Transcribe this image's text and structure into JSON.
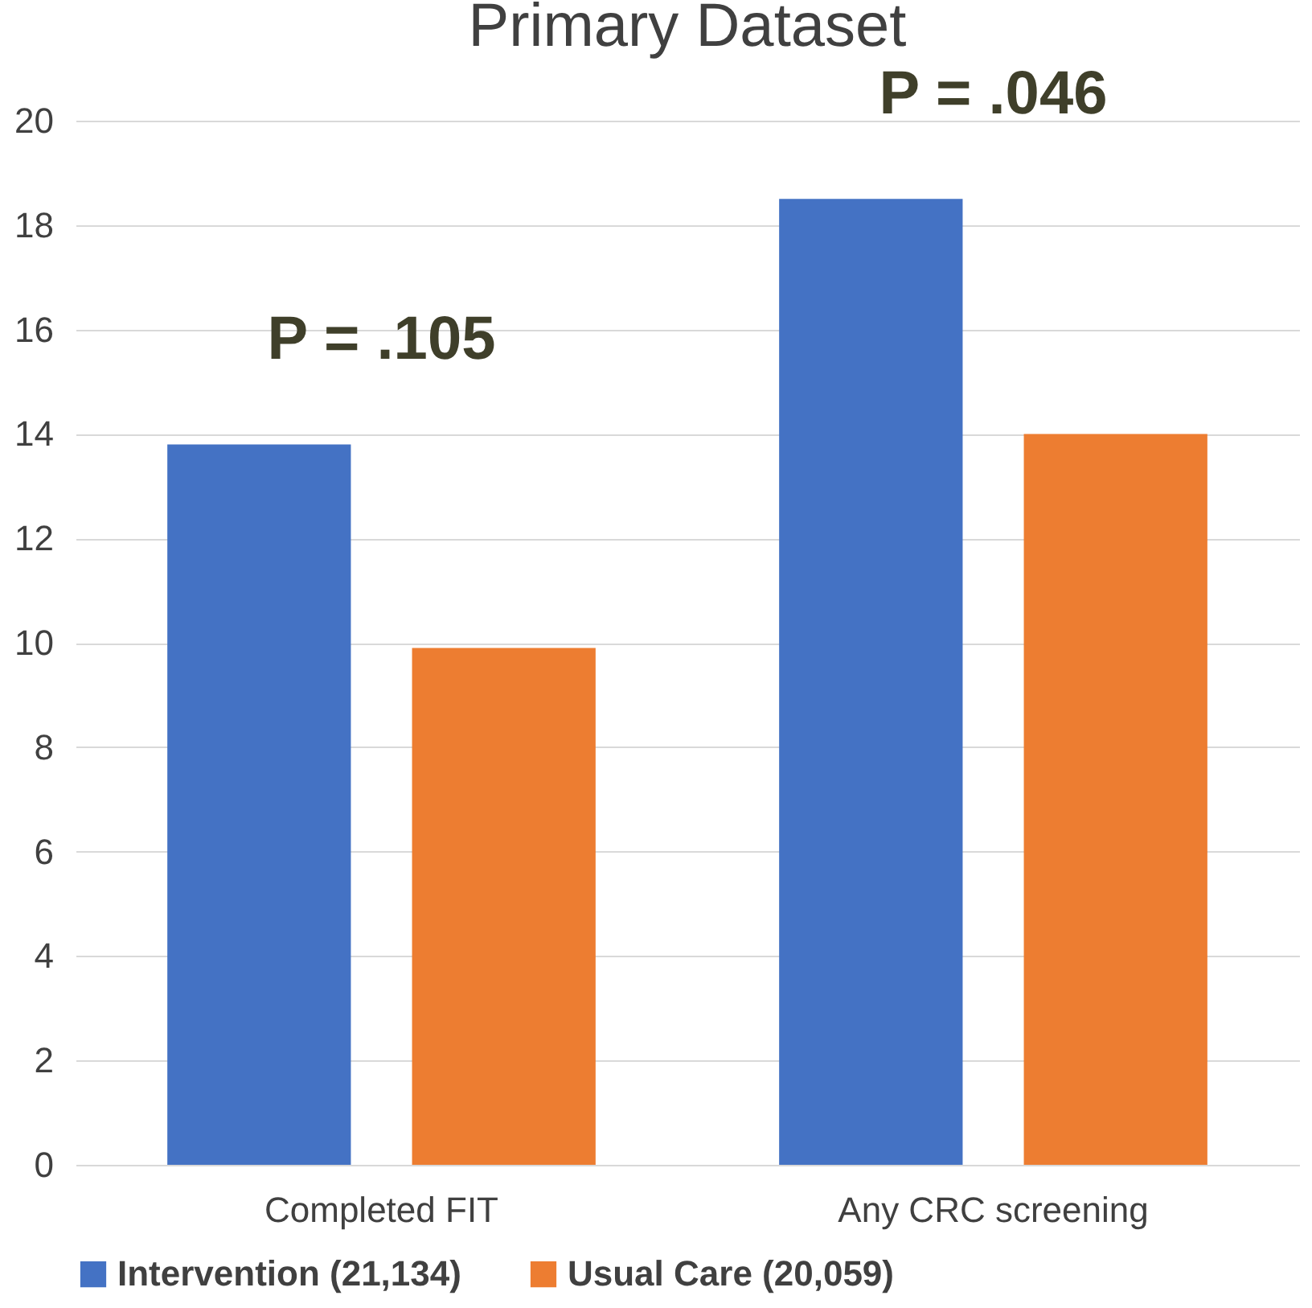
{
  "chart_data": {
    "type": "bar",
    "title": "Primary Dataset",
    "categories": [
      "Completed FIT",
      "Any CRC screening"
    ],
    "series": [
      {
        "name": "Intervention (21,134)",
        "color": "#4472c4",
        "values": [
          13.8,
          18.5
        ]
      },
      {
        "name": "Usual Care (20,059)",
        "color": "#ed7d31",
        "values": [
          9.9,
          14.0
        ]
      }
    ],
    "ylim": [
      0,
      20
    ],
    "yticks": [
      0,
      2,
      4,
      6,
      8,
      10,
      12,
      14,
      16,
      18,
      20
    ],
    "grid": "y",
    "legend": "bottom",
    "annotations": [
      "P = .105",
      "P = .046"
    ]
  }
}
